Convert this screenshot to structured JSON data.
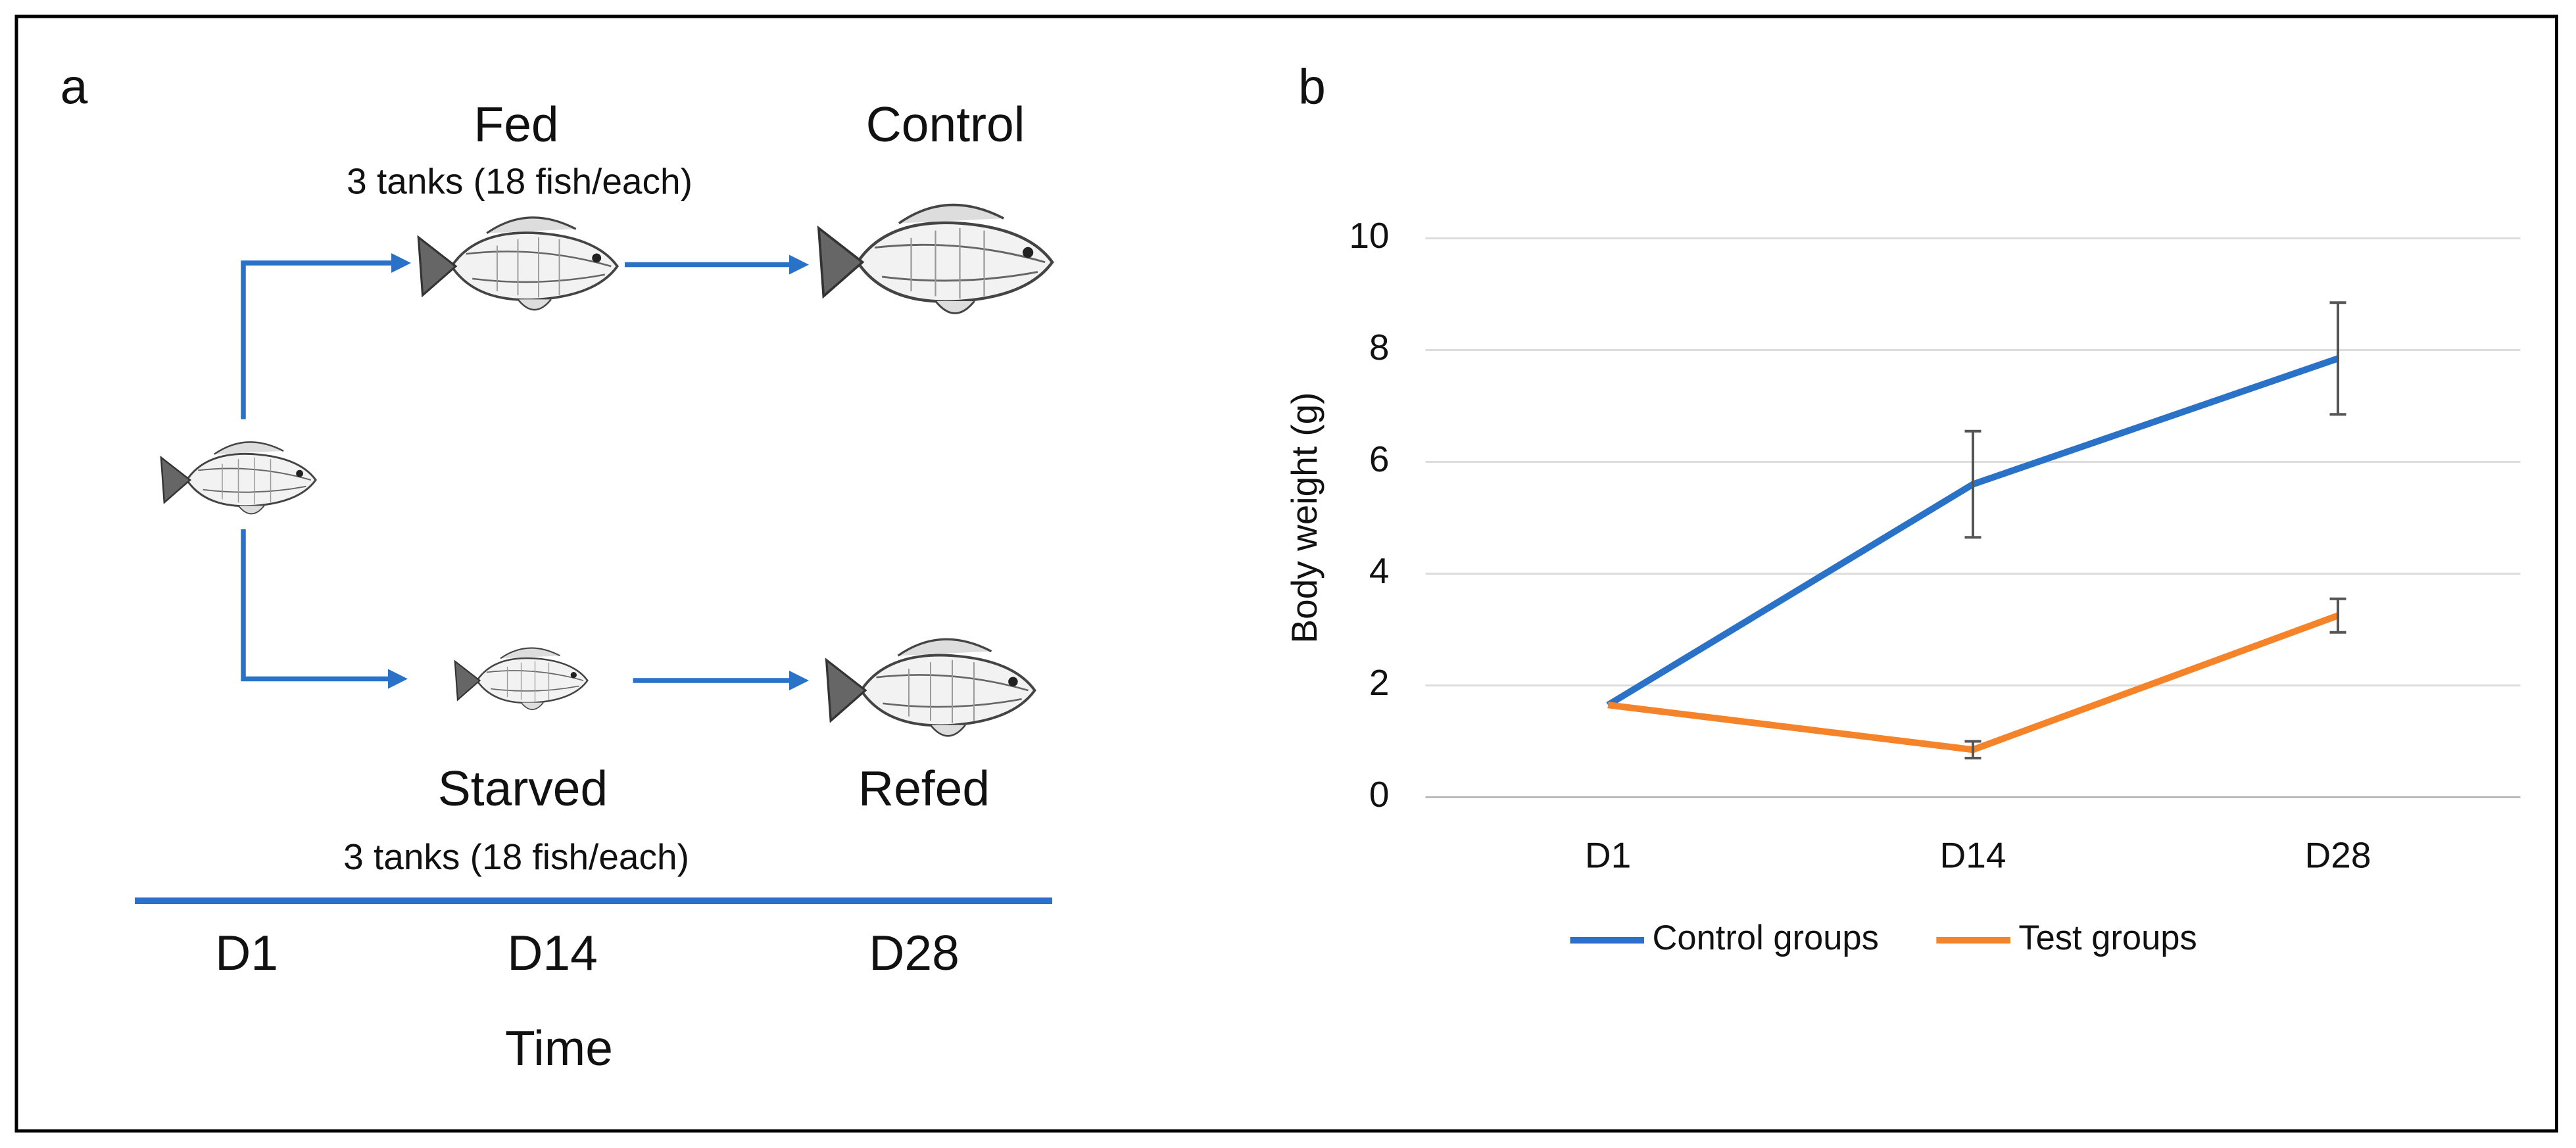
{
  "panel_a": {
    "label": "a",
    "fed": "Fed",
    "fed_tanks": "3 tanks (18 fish/each)",
    "control": "Control",
    "starved": "Starved",
    "starved_tanks": "3 tanks (18 fish/each)",
    "refed": "Refed",
    "timepoints": [
      "D1",
      "D14",
      "D28"
    ],
    "time_label": "Time"
  },
  "chart_data": {
    "type": "line",
    "panel_label": "b",
    "ylabel": "Body weight (g)",
    "categories": [
      "D1",
      "D14",
      "D28"
    ],
    "series": [
      {
        "name": "Control groups",
        "color": "#2a72c8",
        "values": [
          1.65,
          5.6,
          7.85
        ],
        "errors": [
          null,
          0.95,
          1.0
        ]
      },
      {
        "name": "Test groups",
        "color": "#f5832a",
        "values": [
          1.65,
          0.85,
          3.25
        ],
        "errors": [
          null,
          0.15,
          0.3
        ]
      }
    ],
    "ylim": [
      0,
      10
    ],
    "yticks": [
      0,
      2,
      4,
      6,
      8,
      10
    ],
    "grid": true,
    "legend": "bottom"
  }
}
